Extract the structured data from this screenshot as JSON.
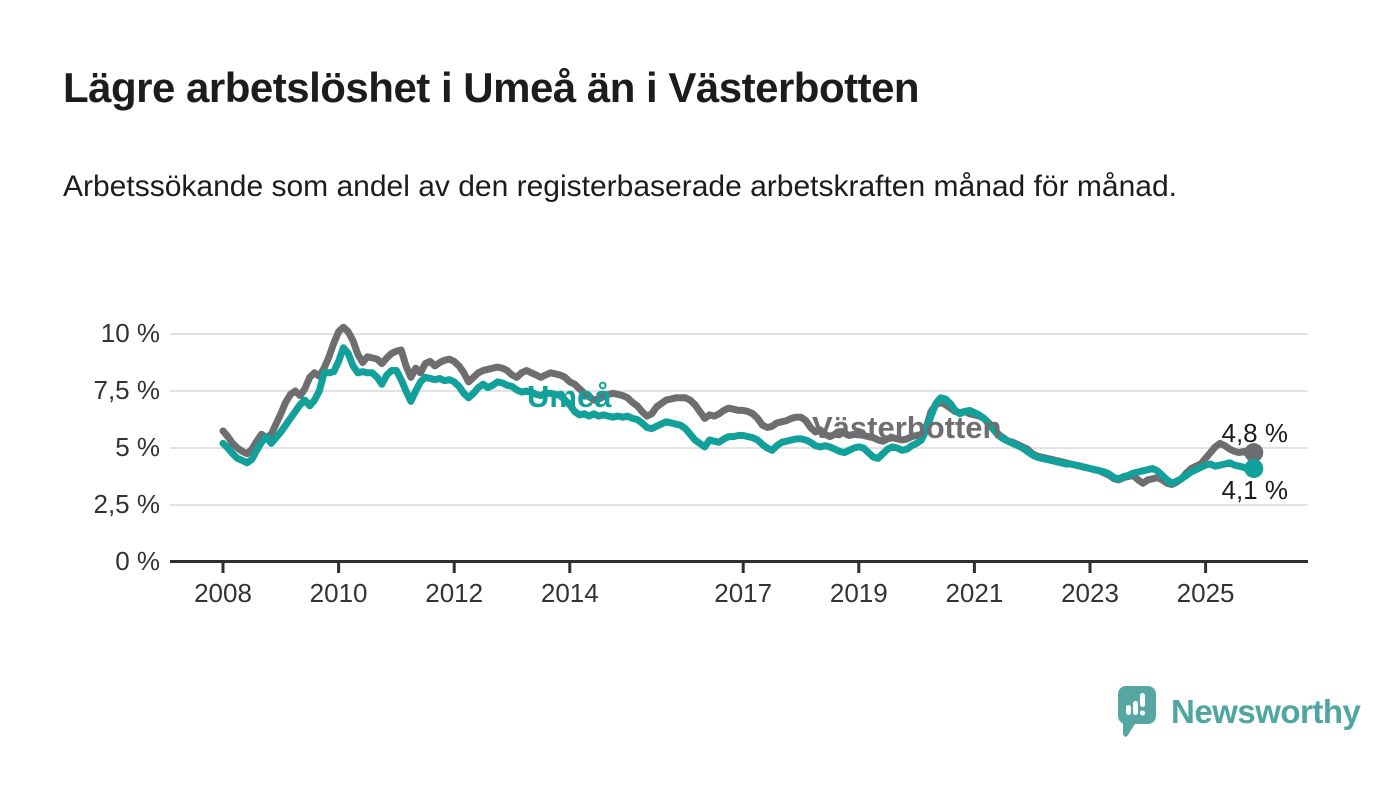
{
  "header": {
    "title": "Lägre arbetslöshet i Umeå än i Västerbotten",
    "subtitle": "Arbetssökande som andel av den registerbaserade arbetskraften månad för månad."
  },
  "chart_data": {
    "type": "line",
    "unit": "%",
    "x_start_year": 2008,
    "points_per_year": 12,
    "ylim": [
      0,
      10.5
    ],
    "grid": true,
    "y_ticks": [
      {
        "value": 0,
        "label": "0 %"
      },
      {
        "value": 2.5,
        "label": "2,5 %"
      },
      {
        "value": 5,
        "label": "5 %"
      },
      {
        "value": 7.5,
        "label": "7,5 %"
      },
      {
        "value": 10,
        "label": "10 %"
      }
    ],
    "x_ticks": [
      {
        "year": 2008,
        "label": "2008"
      },
      {
        "year": 2010,
        "label": "2010"
      },
      {
        "year": 2012,
        "label": "2012"
      },
      {
        "year": 2014,
        "label": "2014"
      },
      {
        "year": 2017,
        "label": "2017"
      },
      {
        "year": 2019,
        "label": "2019"
      },
      {
        "year": 2021,
        "label": "2021"
      },
      {
        "year": 2023,
        "label": "2023"
      },
      {
        "year": 2025,
        "label": "2025"
      }
    ],
    "series": [
      {
        "name": "Västerbotten",
        "label_text": "Västerbotten",
        "end_label": "4,8 %",
        "color": "#6e6e71",
        "values": [
          5.75,
          5.5,
          5.2,
          5.0,
          4.85,
          4.75,
          4.95,
          5.3,
          5.6,
          5.45,
          5.6,
          6.05,
          6.5,
          7.0,
          7.35,
          7.5,
          7.3,
          7.6,
          8.1,
          8.3,
          8.15,
          8.5,
          9.0,
          9.6,
          10.1,
          10.3,
          10.1,
          9.7,
          9.1,
          8.75,
          9.0,
          8.95,
          8.9,
          8.7,
          8.95,
          9.15,
          9.25,
          9.3,
          8.6,
          8.1,
          8.5,
          8.3,
          8.7,
          8.8,
          8.6,
          8.75,
          8.85,
          8.9,
          8.8,
          8.6,
          8.3,
          7.9,
          8.1,
          8.3,
          8.4,
          8.45,
          8.5,
          8.55,
          8.5,
          8.4,
          8.2,
          8.1,
          8.3,
          8.4,
          8.3,
          8.2,
          8.1,
          8.2,
          8.3,
          8.25,
          8.2,
          8.1,
          7.9,
          7.8,
          7.6,
          7.4,
          7.25,
          7.1,
          7.15,
          7.25,
          7.35,
          7.4,
          7.35,
          7.3,
          7.2,
          7.0,
          6.85,
          6.6,
          6.4,
          6.5,
          6.8,
          6.95,
          7.1,
          7.15,
          7.2,
          7.2,
          7.2,
          7.1,
          6.9,
          6.6,
          6.3,
          6.45,
          6.4,
          6.5,
          6.65,
          6.75,
          6.7,
          6.65,
          6.65,
          6.6,
          6.5,
          6.3,
          6.0,
          5.9,
          5.95,
          6.1,
          6.15,
          6.2,
          6.3,
          6.35,
          6.35,
          6.2,
          5.9,
          5.7,
          5.8,
          5.6,
          5.5,
          5.6,
          5.7,
          5.65,
          5.55,
          5.6,
          5.6,
          5.55,
          5.5,
          5.45,
          5.35,
          5.3,
          5.4,
          5.45,
          5.4,
          5.35,
          5.4,
          5.5,
          5.55,
          5.6,
          5.9,
          6.6,
          6.9,
          7.0,
          6.9,
          6.75,
          6.6,
          6.55,
          6.6,
          6.5,
          6.45,
          6.4,
          6.3,
          6.1,
          5.85,
          5.6,
          5.45,
          5.3,
          5.25,
          5.15,
          5.05,
          4.95,
          4.75,
          4.65,
          4.6,
          4.55,
          4.5,
          4.45,
          4.4,
          4.35,
          4.3,
          4.25,
          4.2,
          4.15,
          4.1,
          4.05,
          4.0,
          3.9,
          3.8,
          3.65,
          3.6,
          3.7,
          3.75,
          3.8,
          3.6,
          3.45,
          3.6,
          3.65,
          3.7,
          3.6,
          3.45,
          3.4,
          3.5,
          3.65,
          3.9,
          4.1,
          4.2,
          4.3,
          4.55,
          4.8,
          5.05,
          5.2,
          5.1,
          4.95,
          4.85,
          4.8,
          4.85,
          4.7,
          4.8
        ]
      },
      {
        "name": "Umeå",
        "label_text": "Umeå",
        "end_label": "4,1 %",
        "color": "#11a19a",
        "values": [
          5.2,
          5.0,
          4.75,
          4.55,
          4.45,
          4.35,
          4.5,
          4.9,
          5.25,
          5.5,
          5.2,
          5.45,
          5.7,
          6.0,
          6.3,
          6.6,
          6.9,
          7.1,
          6.85,
          7.1,
          7.5,
          8.3,
          8.3,
          8.35,
          8.8,
          9.4,
          9.15,
          8.6,
          8.3,
          8.35,
          8.3,
          8.3,
          8.1,
          7.8,
          8.2,
          8.4,
          8.4,
          8.0,
          7.5,
          7.05,
          7.5,
          7.9,
          8.1,
          8.05,
          8.0,
          8.05,
          7.95,
          8.0,
          7.9,
          7.7,
          7.4,
          7.2,
          7.4,
          7.65,
          7.8,
          7.65,
          7.75,
          7.9,
          7.85,
          7.75,
          7.7,
          7.55,
          7.45,
          7.5,
          7.45,
          7.35,
          7.3,
          7.4,
          7.4,
          7.35,
          7.3,
          7.1,
          6.9,
          6.6,
          6.45,
          6.5,
          6.4,
          6.5,
          6.4,
          6.45,
          6.4,
          6.35,
          6.4,
          6.35,
          6.4,
          6.3,
          6.25,
          6.1,
          5.9,
          5.85,
          5.95,
          6.05,
          6.15,
          6.1,
          6.05,
          6.0,
          5.85,
          5.6,
          5.35,
          5.2,
          5.05,
          5.35,
          5.3,
          5.25,
          5.4,
          5.5,
          5.5,
          5.55,
          5.55,
          5.5,
          5.45,
          5.35,
          5.15,
          5.0,
          4.9,
          5.1,
          5.25,
          5.3,
          5.35,
          5.4,
          5.4,
          5.35,
          5.25,
          5.1,
          5.05,
          5.1,
          5.05,
          4.95,
          4.85,
          4.8,
          4.9,
          5.0,
          5.05,
          5.0,
          4.8,
          4.6,
          4.55,
          4.75,
          4.95,
          5.05,
          5.0,
          4.9,
          4.95,
          5.1,
          5.2,
          5.35,
          5.8,
          6.4,
          6.95,
          7.2,
          7.15,
          6.95,
          6.65,
          6.5,
          6.6,
          6.65,
          6.55,
          6.45,
          6.3,
          6.05,
          5.8,
          5.55,
          5.4,
          5.3,
          5.2,
          5.1,
          5.0,
          4.85,
          4.7,
          4.6,
          4.55,
          4.5,
          4.45,
          4.4,
          4.35,
          4.3,
          4.3,
          4.25,
          4.2,
          4.15,
          4.1,
          4.05,
          4.0,
          3.95,
          3.85,
          3.7,
          3.65,
          3.75,
          3.8,
          3.9,
          3.95,
          4.0,
          4.05,
          4.1,
          4.0,
          3.8,
          3.6,
          3.45,
          3.55,
          3.65,
          3.8,
          3.95,
          4.05,
          4.15,
          4.25,
          4.3,
          4.2,
          4.25,
          4.3,
          4.35,
          4.25,
          4.2,
          4.15,
          4.05,
          4.1
        ]
      }
    ],
    "colors": {
      "grid": "#d9d9d9",
      "axis": "#2f2f2f",
      "tick_text": "#333333",
      "title_text": "#1c1c1c"
    }
  },
  "footer": {
    "brand": "Newsworthy",
    "brand_color": "#4fa5a0"
  }
}
